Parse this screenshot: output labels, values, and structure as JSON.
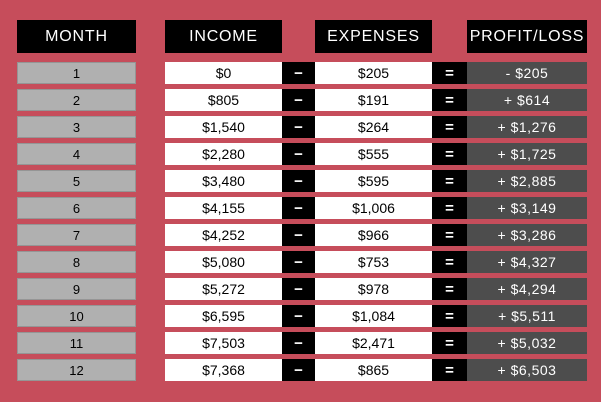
{
  "table": {
    "headers": {
      "month": "MONTH",
      "income": "INCOME",
      "expenses": "EXPENSES",
      "profit_loss": "PROFIT/LOSS"
    },
    "operators": {
      "minus": "−",
      "equals": "="
    },
    "rows": [
      {
        "month": "1",
        "income": "$0",
        "expenses": "$205",
        "profit": "- $205"
      },
      {
        "month": "2",
        "income": "$805",
        "expenses": "$191",
        "profit": "+ $614"
      },
      {
        "month": "3",
        "income": "$1,540",
        "expenses": "$264",
        "profit": "+ $1,276"
      },
      {
        "month": "4",
        "income": "$2,280",
        "expenses": "$555",
        "profit": "+ $1,725"
      },
      {
        "month": "5",
        "income": "$3,480",
        "expenses": "$595",
        "profit": "+ $2,885"
      },
      {
        "month": "6",
        "income": "$4,155",
        "expenses": "$1,006",
        "profit": "+ $3,149"
      },
      {
        "month": "7",
        "income": "$4,252",
        "expenses": "$966",
        "profit": "+ $3,286"
      },
      {
        "month": "8",
        "income": "$5,080",
        "expenses": "$753",
        "profit": "+ $4,327"
      },
      {
        "month": "9",
        "income": "$5,272",
        "expenses": "$978",
        "profit": "+ $4,294"
      },
      {
        "month": "10",
        "income": "$6,595",
        "expenses": "$1,084",
        "profit": "+ $5,511"
      },
      {
        "month": "11",
        "income": "$7,503",
        "expenses": "$2,471",
        "profit": "+ $5,032"
      },
      {
        "month": "12",
        "income": "$7,368",
        "expenses": "$865",
        "profit": "+ $6,503"
      }
    ]
  },
  "colors": {
    "background": "#C64D5B",
    "header_bg": "#000000",
    "header_text": "#FFFFFF",
    "month_cell_bg": "#B0B0B0",
    "value_cell_bg": "#FFFFFF",
    "value_text": "#000000",
    "operator_bg": "#000000",
    "operator_text": "#FFFFFF",
    "profit_cell_bg": "#4D4D4D",
    "profit_text": "#FFFFFF"
  },
  "chart_data": {
    "type": "table",
    "columns": [
      "MONTH",
      "INCOME",
      "EXPENSES",
      "PROFIT/LOSS"
    ],
    "rows": [
      [
        1,
        0,
        205,
        -205
      ],
      [
        2,
        805,
        191,
        614
      ],
      [
        3,
        1540,
        264,
        1276
      ],
      [
        4,
        2280,
        555,
        1725
      ],
      [
        5,
        3480,
        595,
        2885
      ],
      [
        6,
        4155,
        1006,
        3149
      ],
      [
        7,
        4252,
        966,
        3286
      ],
      [
        8,
        5080,
        753,
        4327
      ],
      [
        9,
        5272,
        978,
        4294
      ],
      [
        10,
        6595,
        1084,
        5511
      ],
      [
        11,
        7503,
        2471,
        5032
      ],
      [
        12,
        7368,
        865,
        6503
      ]
    ],
    "notes": "Each row reads INCOME − EXPENSES = PROFIT/LOSS; negative profit shown with leading minus, positive with leading plus."
  }
}
